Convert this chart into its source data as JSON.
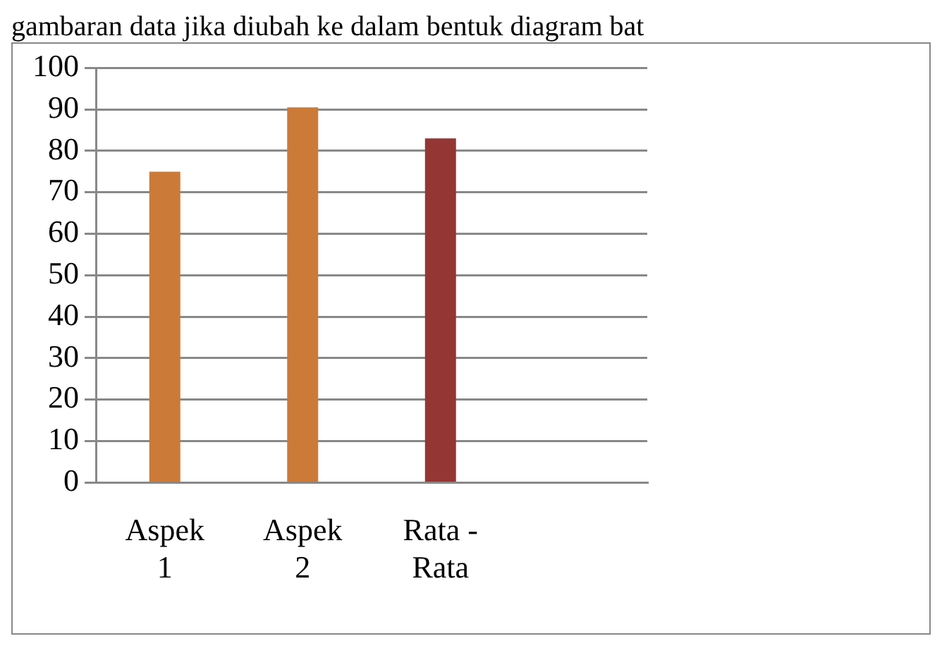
{
  "chart_data": {
    "type": "bar",
    "annotations": [
      "gambaran data jika diubah ke dalam bentuk diagram bat"
    ],
    "categories": [
      "Aspek 1",
      "Aspek 2",
      "Rata - Rata",
      null
    ],
    "values": [
      75,
      90.5,
      83,
      null
    ],
    "colors": [
      "#cc7a38",
      "#cc7a38",
      "#943634",
      "#cc7a38"
    ],
    "ylim": [
      0,
      100
    ],
    "yticks": [
      0,
      10,
      20,
      30,
      40,
      50,
      60,
      70,
      80,
      90,
      100
    ],
    "grid": "y",
    "legend": false
  }
}
